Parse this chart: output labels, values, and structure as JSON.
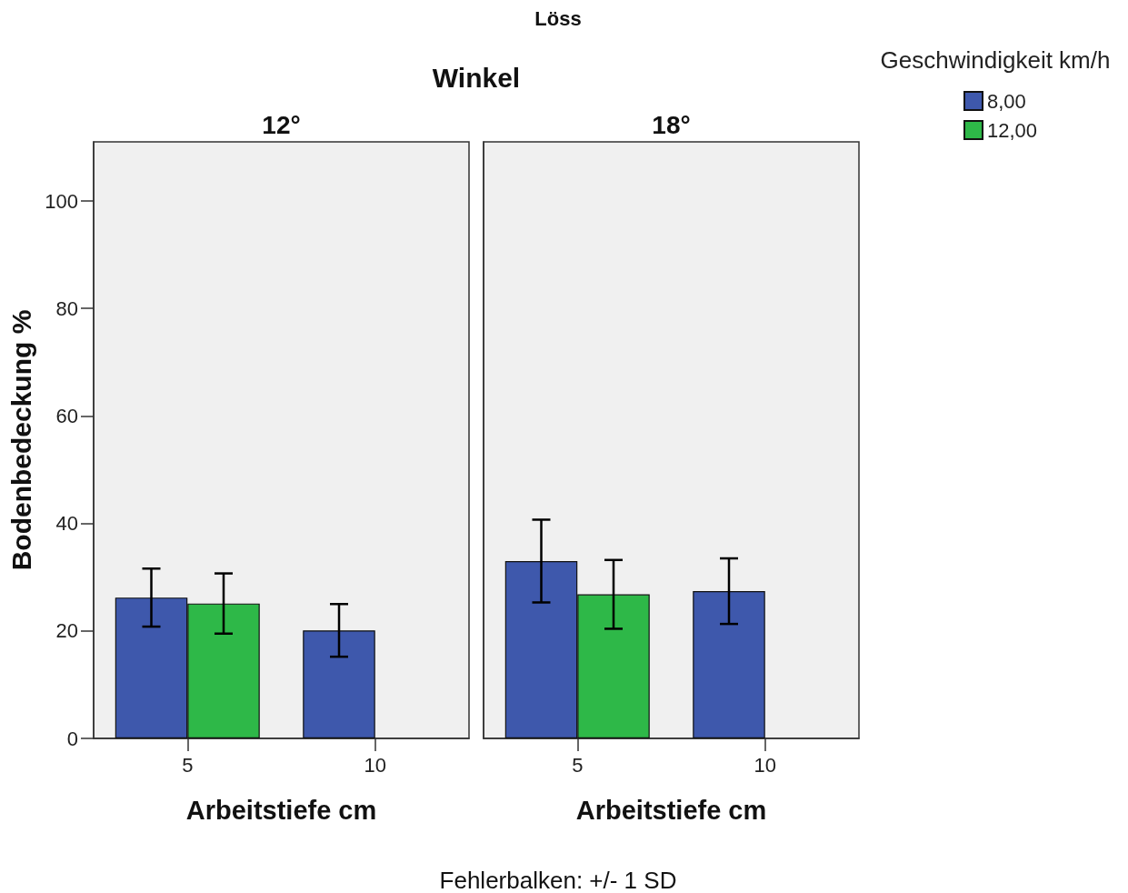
{
  "chart_data": [
    {
      "type": "bar",
      "title": "12°",
      "xlabel": "Arbeitstiefe cm",
      "ylabel": "Bodenbedeckung %",
      "annotations": [
        "Löss",
        "Winkel",
        "Fehlerbalken: +/- 1 SD"
      ],
      "categories": [
        "5",
        "10"
      ],
      "series": [
        {
          "color": "#3e58ac",
          "values": [
            26.2,
            20.1
          ],
          "errors": [
            5.4,
            4.9
          ]
        },
        {
          "color": "#2eb848",
          "values": [
            25.1,
            null
          ],
          "errors": [
            5.6,
            null
          ]
        }
      ],
      "ylim": [
        0,
        111
      ],
      "yticks": [
        0,
        20,
        40,
        60,
        80,
        100
      ]
    },
    {
      "type": "bar",
      "title": "18°",
      "xlabel": "Arbeitstiefe cm",
      "legend_title": "Geschwindigkeit km/h",
      "legend": "top right",
      "categories": [
        "5",
        "10"
      ],
      "series": [
        {
          "name": "8,00",
          "color": "#3e58ac",
          "values": [
            33,
            27.4
          ],
          "errors": [
            7.7,
            6.1
          ]
        },
        {
          "name": "12,00",
          "color": "#2eb848",
          "values": [
            26.8,
            null
          ],
          "errors": [
            6.4,
            null
          ]
        }
      ],
      "ylim": [
        0,
        111
      ],
      "yticks": [
        0,
        20,
        40,
        60,
        80,
        100
      ],
      "tick_labels": "x"
    }
  ]
}
